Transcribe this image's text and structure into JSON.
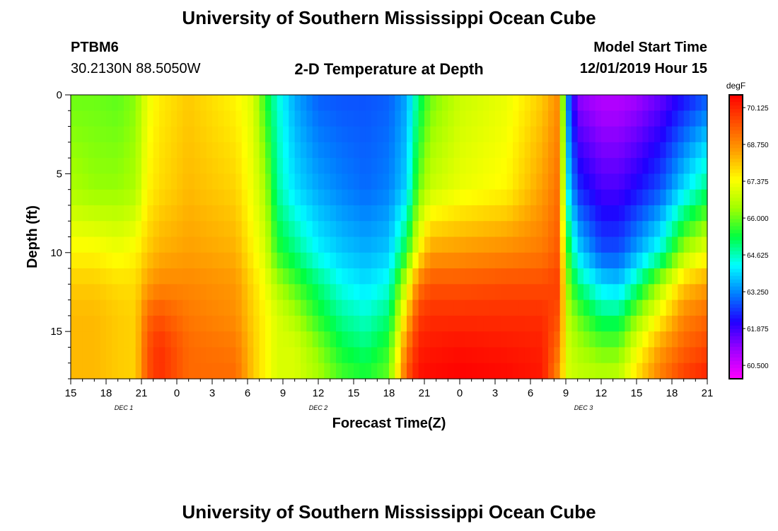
{
  "header": {
    "title": "University of Southern Mississippi Ocean Cube",
    "station": "PTBM6",
    "coords": "30.2130N 88.5050W",
    "plot_title": "2-D Temperature at Depth",
    "model_start_label": "Model Start Time",
    "model_start_value": "12/01/2019 Hour 15"
  },
  "footer": {
    "title": "University of Southern Mississippi Ocean Cube"
  },
  "chart_data": {
    "type": "heatmap",
    "title": "2-D Temperature at Depth",
    "xlabel": "Forecast Time(Z)",
    "ylabel": "Depth (ft)",
    "colorbar_unit": "degF",
    "x_range_hours": [
      0,
      54
    ],
    "y_range_ft": [
      0,
      18
    ],
    "y_ticks": [
      0,
      5,
      10,
      15
    ],
    "x_tick_labels": [
      "15",
      "18",
      "21",
      "0",
      "3",
      "6",
      "9",
      "12",
      "15",
      "18",
      "21",
      "0",
      "3",
      "6",
      "9",
      "12",
      "15",
      "18",
      "21"
    ],
    "date_labels": [
      {
        "text": "DEC 1",
        "hour": 4.5
      },
      {
        "text": "DEC 2",
        "hour": 21
      },
      {
        "text": "DEC 3",
        "hour": 43.5
      }
    ],
    "colorbar_ticks": [
      70.125,
      68.75,
      67.375,
      66.0,
      64.625,
      63.25,
      61.875,
      60.5
    ],
    "value_range": [
      60.0,
      70.6
    ],
    "colors": [
      "#ff00ff",
      "#a000ff",
      "#2000ff",
      "#0080ff",
      "#00ffff",
      "#00ff40",
      "#a0ff00",
      "#ffff00",
      "#ffa000",
      "#ff5000",
      "#ff0000"
    ],
    "depths_ft": [
      0,
      6,
      10,
      12,
      14,
      16,
      18
    ],
    "columns": [
      {
        "hour": 0,
        "temps": [
          66.0,
          66.5,
          67.5,
          68.0,
          68.2,
          68.2,
          68.2
        ]
      },
      {
        "hour": 2,
        "temps": [
          66.0,
          66.3,
          67.5,
          68.0,
          68.2,
          68.2,
          68.2
        ]
      },
      {
        "hour": 4,
        "temps": [
          65.9,
          66.3,
          67.3,
          67.8,
          68.0,
          68.0,
          68.0
        ]
      },
      {
        "hour": 5.5,
        "temps": [
          66.2,
          66.5,
          67.5,
          67.8,
          67.9,
          67.9,
          67.9
        ]
      },
      {
        "hour": 6.5,
        "temps": [
          67.2,
          67.5,
          68.0,
          68.5,
          69.2,
          69.5,
          69.5
        ]
      },
      {
        "hour": 7.5,
        "temps": [
          67.6,
          67.8,
          68.3,
          68.8,
          69.5,
          70.0,
          70.0
        ]
      },
      {
        "hour": 10,
        "temps": [
          68.0,
          68.2,
          68.5,
          68.8,
          69.0,
          69.2,
          69.2
        ]
      },
      {
        "hour": 14,
        "temps": [
          67.5,
          67.9,
          68.3,
          68.6,
          68.7,
          69.0,
          69.2
        ]
      },
      {
        "hour": 15.5,
        "temps": [
          67.0,
          67.2,
          67.5,
          67.8,
          67.9,
          68.0,
          68.0
        ]
      },
      {
        "hour": 16.5,
        "temps": [
          65.5,
          66.5,
          67.0,
          67.3,
          67.5,
          67.5,
          67.5
        ]
      },
      {
        "hour": 17.5,
        "temps": [
          64.5,
          64.8,
          65.6,
          66.5,
          67.0,
          67.0,
          67.0
        ]
      },
      {
        "hour": 19,
        "temps": [
          63.5,
          64.0,
          65.0,
          65.8,
          66.5,
          67.0,
          67.0
        ]
      },
      {
        "hour": 21,
        "temps": [
          62.9,
          63.5,
          64.2,
          65.0,
          65.5,
          66.2,
          66.5
        ]
      },
      {
        "hour": 23,
        "temps": [
          62.8,
          63.2,
          63.8,
          64.3,
          64.8,
          65.3,
          65.8
        ]
      },
      {
        "hour": 25,
        "temps": [
          62.8,
          63.0,
          63.6,
          64.0,
          64.5,
          65.0,
          65.5
        ]
      },
      {
        "hour": 27,
        "temps": [
          62.9,
          63.2,
          63.8,
          64.4,
          65.0,
          65.6,
          66.0
        ]
      },
      {
        "hour": 28.5,
        "temps": [
          63.5,
          63.9,
          65.5,
          67.0,
          68.0,
          69.0,
          69.5
        ]
      },
      {
        "hour": 29.5,
        "temps": [
          65.0,
          66.0,
          67.5,
          69.0,
          69.8,
          70.2,
          70.4
        ]
      },
      {
        "hour": 30.5,
        "temps": [
          66.0,
          66.8,
          68.5,
          69.5,
          70.0,
          70.3,
          70.5
        ]
      },
      {
        "hour": 33,
        "temps": [
          66.8,
          67.2,
          68.6,
          69.5,
          70.0,
          70.4,
          70.6
        ]
      },
      {
        "hour": 37,
        "temps": [
          67.2,
          67.5,
          68.8,
          69.6,
          70.0,
          70.3,
          70.5
        ]
      },
      {
        "hour": 40,
        "temps": [
          68.0,
          68.5,
          69.0,
          69.6,
          70.0,
          70.2,
          70.3
        ]
      },
      {
        "hour": 41.5,
        "temps": [
          68.8,
          69.2,
          69.5,
          69.8,
          69.5,
          69.0,
          68.5
        ]
      },
      {
        "hour": 42,
        "temps": [
          63.5,
          64.5,
          66.0,
          66.5,
          66.8,
          67.0,
          67.0
        ]
      },
      {
        "hour": 43,
        "temps": [
          61.2,
          62.5,
          64.0,
          65.0,
          66.0,
          66.5,
          66.8
        ]
      },
      {
        "hour": 45,
        "temps": [
          60.8,
          61.8,
          62.8,
          64.0,
          65.0,
          66.0,
          66.7
        ]
      },
      {
        "hour": 46.5,
        "temps": [
          60.8,
          61.8,
          62.8,
          63.8,
          65.0,
          66.0,
          66.8
        ]
      },
      {
        "hour": 48,
        "temps": [
          61.0,
          62.2,
          63.5,
          64.8,
          66.2,
          67.2,
          67.8
        ]
      },
      {
        "hour": 50,
        "temps": [
          61.5,
          62.8,
          64.5,
          66.5,
          67.5,
          68.5,
          69.0
        ]
      },
      {
        "hour": 52,
        "temps": [
          62.2,
          64.0,
          66.5,
          68.0,
          68.8,
          69.3,
          69.8
        ]
      },
      {
        "hour": 54,
        "temps": [
          62.8,
          65.0,
          67.3,
          68.5,
          69.2,
          69.7,
          70.2
        ]
      }
    ]
  }
}
